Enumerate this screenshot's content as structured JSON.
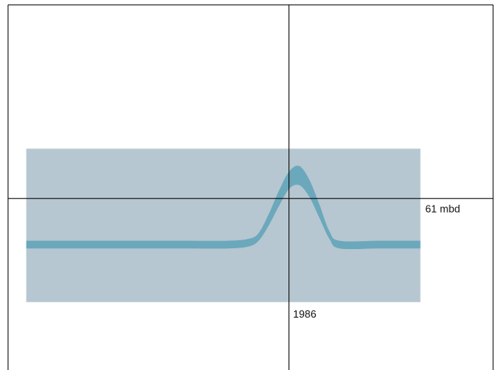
{
  "chart_data": {
    "type": "area",
    "title": "",
    "xlabel": "",
    "ylabel": "",
    "x_tick": "1986",
    "y_tick": "61 mbd",
    "x_crosshair": 1986,
    "y_crosshair": 61,
    "series": [
      {
        "x": [
          1960,
          1965,
          1970,
          1975,
          1980,
          1982,
          1983,
          1984,
          1985,
          1986,
          1987,
          1988,
          1989,
          1990,
          1991,
          1995,
          1999
        ],
        "lower": [
          48,
          48,
          48,
          48,
          48,
          48.5,
          50,
          54,
          59,
          63.5,
          64.5,
          61.5,
          56,
          50.5,
          48,
          48,
          48
        ],
        "upper": [
          50,
          50,
          50,
          50,
          50,
          50.5,
          52,
          57,
          63,
          68,
          69.5,
          66,
          59.5,
          52.5,
          50,
          50,
          50
        ]
      }
    ],
    "shaded_band": {
      "x": [
        1960,
        1999
      ],
      "y": [
        34,
        74
      ]
    },
    "xlim": [
      1958.2,
      2006.2
    ],
    "ylim": [
      16.3,
      111.5
    ],
    "colors": {
      "band": "#b6c7d1",
      "series": "#6ba8bb",
      "axis": "#000000"
    }
  }
}
